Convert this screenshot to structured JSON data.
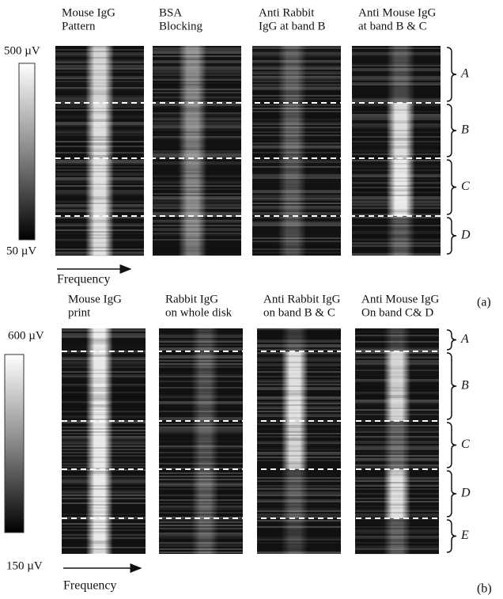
{
  "panels": [
    {
      "images": [
        {
          "title": [
            "Mouse IgG",
            "Pattern"
          ]
        },
        {
          "title": [
            "BSA",
            "Blocking"
          ]
        },
        {
          "title": [
            "Anti Rabbit",
            "IgG at band B"
          ]
        },
        {
          "title": [
            "Anti Mouse IgG",
            "at band B & C"
          ]
        }
      ],
      "colorbar": {
        "max": "500 µV",
        "min": "50 µV"
      },
      "x_axis": "Frequency",
      "bands": [
        "A",
        "B",
        "C",
        "D"
      ],
      "label": "(a)"
    },
    {
      "images": [
        {
          "title": [
            "Mouse IgG",
            "print"
          ]
        },
        {
          "title": [
            "Rabbit IgG",
            "on whole disk"
          ]
        },
        {
          "title": [
            "Anti Rabbit IgG",
            "on band B & C"
          ]
        },
        {
          "title": [
            "Anti Mouse IgG",
            "On band C& D"
          ]
        }
      ],
      "colorbar": {
        "max": "600 µV",
        "min": "150 µV"
      },
      "x_axis": "Frequency",
      "bands": [
        "A",
        "B",
        "C",
        "D",
        "E"
      ],
      "label": "(b)"
    }
  ]
}
